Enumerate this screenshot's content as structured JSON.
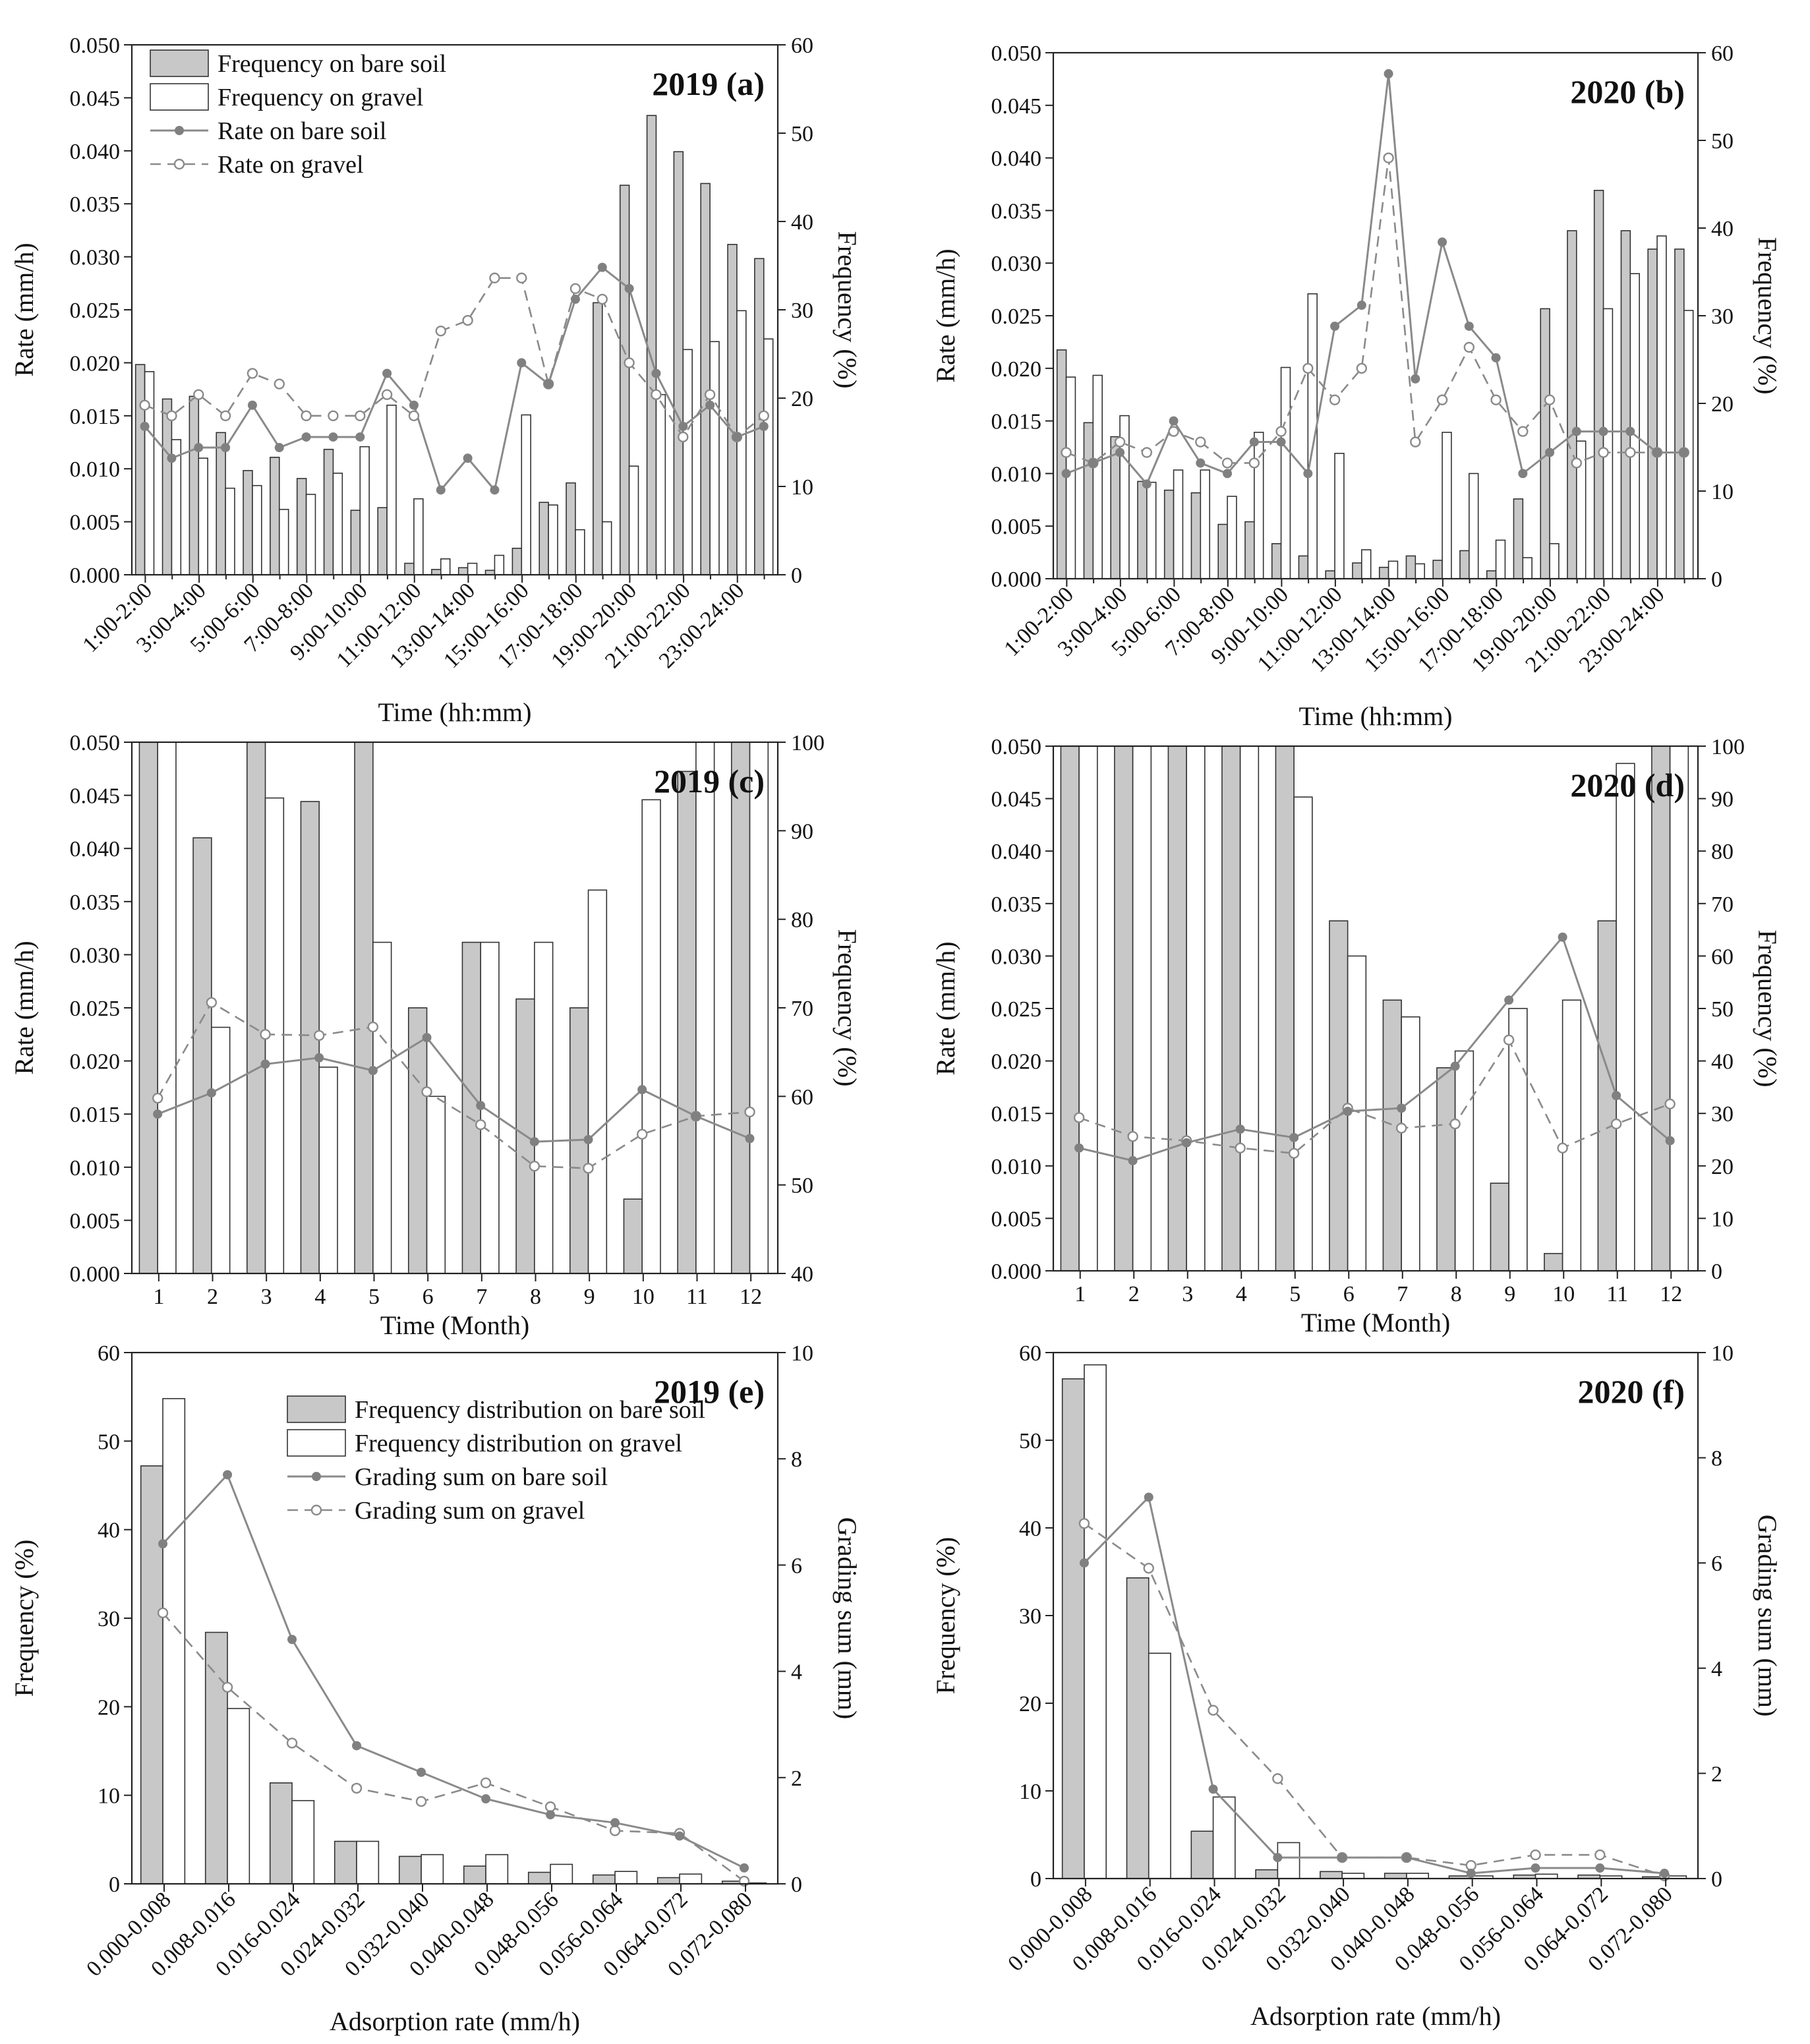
{
  "chart_data": [
    {
      "type": "bar",
      "id": "a",
      "title": "2019 (a)",
      "xlabel": "Time (hh:mm)",
      "ylabel_left": "Rate (mm/h)",
      "ylabel_right": "Frequency (%)",
      "ylim_left": [
        0,
        0.05
      ],
      "ylim_right": [
        0,
        60
      ],
      "left_ticks": [
        "0.000",
        "0.005",
        "0.010",
        "0.015",
        "0.020",
        "0.025",
        "0.030",
        "0.035",
        "0.040",
        "0.045",
        "0.050"
      ],
      "right_ticks": [
        "0",
        "10",
        "20",
        "30",
        "40",
        "50",
        "60"
      ],
      "x_tick_labels": [
        "1:00-2:00",
        "3:00-4:00",
        "5:00-6:00",
        "7:00-8:00",
        "9:00-10:00",
        "11:00-12:00",
        "13:00-14:00",
        "15:00-16:00",
        "17:00-18:00",
        "19:00-20:00",
        "21:00-22:00",
        "23:00-24:00"
      ],
      "legend": [
        "Frequency on bare soil",
        "Frequency on gravel",
        "Rate on bare soil",
        "Rate on gravel"
      ],
      "bars": [
        {
          "name": "Frequency on bare soil",
          "values": [
            23.8,
            19.9,
            20.2,
            16.1,
            11.8,
            13.3,
            10.9,
            14.2,
            7.3,
            7.6,
            1.3,
            0.6,
            0.8,
            0.5,
            3.0,
            8.2,
            10.4,
            30.8,
            44.1,
            52.0,
            47.9,
            44.3,
            37.4,
            35.8
          ]
        },
        {
          "name": "Frequency on gravel",
          "values": [
            23.0,
            15.3,
            13.2,
            9.8,
            10.1,
            7.4,
            9.1,
            11.5,
            14.5,
            19.2,
            8.6,
            1.8,
            1.3,
            2.2,
            18.1,
            7.9,
            5.1,
            6.0,
            12.3,
            20.4,
            25.5,
            26.4,
            29.9,
            26.7
          ]
        }
      ],
      "lines": [
        {
          "name": "Rate on bare soil",
          "values": [
            0.014,
            0.011,
            0.012,
            0.012,
            0.016,
            0.012,
            0.013,
            0.013,
            0.013,
            0.019,
            0.016,
            0.008,
            0.011,
            0.008,
            0.02,
            0.018,
            0.026,
            0.029,
            0.027,
            0.019,
            0.014,
            0.016,
            0.013,
            0.014
          ]
        },
        {
          "name": "Rate on gravel",
          "values": [
            0.016,
            0.015,
            0.017,
            0.015,
            0.019,
            0.018,
            0.015,
            0.015,
            0.015,
            0.017,
            0.015,
            0.023,
            0.024,
            0.028,
            0.028,
            0.018,
            0.027,
            0.026,
            0.02,
            0.017,
            0.013,
            0.017,
            0.013,
            0.015
          ]
        }
      ]
    },
    {
      "type": "bar",
      "id": "b",
      "title": "2020 (b)",
      "xlabel": "Time (hh:mm)",
      "ylabel_left": "Rate (mm/h)",
      "ylabel_right": "Frequency (%)",
      "ylim_left": [
        0,
        0.05
      ],
      "ylim_right": [
        0,
        60
      ],
      "left_ticks": [
        "0.000",
        "0.005",
        "0.010",
        "0.015",
        "0.020",
        "0.025",
        "0.030",
        "0.035",
        "0.040",
        "0.045",
        "0.050"
      ],
      "right_ticks": [
        "0",
        "10",
        "20",
        "30",
        "40",
        "50",
        "60"
      ],
      "x_tick_labels": [
        "1:00-2:00",
        "3:00-4:00",
        "5:00-6:00",
        "7:00-8:00",
        "9:00-10:00",
        "11:00-12:00",
        "13:00-14:00",
        "15:00-16:00",
        "17:00-18:00",
        "19:00-20:00",
        "21:00-22:00",
        "23:00-24:00"
      ],
      "bars": [
        {
          "name": "Frequency on bare soil",
          "values": [
            26.1,
            17.8,
            16.2,
            11.1,
            10.1,
            9.8,
            6.2,
            6.5,
            4.0,
            2.6,
            0.9,
            1.8,
            1.3,
            2.6,
            2.1,
            3.2,
            0.9,
            9.1,
            30.8,
            39.7,
            44.3,
            39.7,
            37.6,
            37.6
          ]
        },
        {
          "name": "Frequency on gravel",
          "values": [
            23.0,
            23.2,
            18.6,
            11.0,
            12.4,
            12.4,
            9.4,
            16.7,
            24.1,
            32.5,
            14.3,
            3.3,
            2.0,
            1.7,
            16.7,
            12.0,
            4.4,
            2.4,
            4.0,
            15.7,
            30.8,
            34.8,
            39.1,
            30.6
          ]
        }
      ],
      "lines": [
        {
          "name": "Rate on bare soil",
          "values": [
            0.01,
            0.011,
            0.012,
            0.009,
            0.015,
            0.011,
            0.01,
            0.013,
            0.013,
            0.01,
            0.024,
            0.026,
            0.048,
            0.019,
            0.032,
            0.024,
            0.021,
            0.01,
            0.012,
            0.014,
            0.014,
            0.014,
            0.012,
            0.012
          ]
        },
        {
          "name": "Rate on gravel",
          "values": [
            0.012,
            0.011,
            0.013,
            0.012,
            0.014,
            0.013,
            0.011,
            0.011,
            0.014,
            0.02,
            0.017,
            0.02,
            0.04,
            0.013,
            0.017,
            0.022,
            0.017,
            0.014,
            0.017,
            0.011,
            0.012,
            0.012,
            0.012,
            0.012
          ]
        }
      ]
    },
    {
      "type": "bar",
      "id": "c",
      "title": "2019 (c)",
      "xlabel": "Time (Month)",
      "ylabel_left": "Rate (mm/h)",
      "ylabel_right": "Frequency (%)",
      "ylim_left": [
        0,
        0.05
      ],
      "ylim_right": [
        40,
        100
      ],
      "left_ticks": [
        "0.000",
        "0.005",
        "0.010",
        "0.015",
        "0.020",
        "0.025",
        "0.030",
        "0.035",
        "0.040",
        "0.045",
        "0.050"
      ],
      "right_ticks": [
        "40",
        "50",
        "60",
        "70",
        "80",
        "90",
        "100"
      ],
      "x_tick_labels": [
        "1",
        "2",
        "3",
        "4",
        "5",
        "6",
        "7",
        "8",
        "9",
        "10",
        "11",
        "12"
      ],
      "bars": [
        {
          "name": "Frequency on bare soil",
          "values": [
            100,
            89.2,
            100,
            93.3,
            100,
            70,
            77.4,
            71,
            70,
            48.4,
            96.7,
            100
          ]
        },
        {
          "name": "Frequency on gravel",
          "values": [
            100,
            67.8,
            93.7,
            63.3,
            77.4,
            60,
            77.4,
            77.4,
            83.3,
            93.5,
            100,
            100
          ]
        }
      ],
      "lines": [
        {
          "name": "Rate on bare soil",
          "values": [
            0.015,
            0.017,
            0.0197,
            0.0203,
            0.0191,
            0.0222,
            0.0158,
            0.0124,
            0.0126,
            0.0173,
            0.0148,
            0.0127
          ]
        },
        {
          "name": "Rate on gravel",
          "values": [
            0.0165,
            0.0255,
            0.0225,
            0.0224,
            0.0232,
            0.0171,
            0.014,
            0.0101,
            0.0099,
            0.0131,
            0.0148,
            0.0152
          ]
        }
      ]
    },
    {
      "type": "bar",
      "id": "d",
      "title": "2020 (d)",
      "xlabel": "Time (Month)",
      "ylabel_left": "Rate (mm/h)",
      "ylabel_right": "Frequency (%)",
      "ylim_left": [
        0,
        0.05
      ],
      "ylim_right": [
        0,
        100
      ],
      "left_ticks": [
        "0.000",
        "0.005",
        "0.010",
        "0.015",
        "0.020",
        "0.025",
        "0.030",
        "0.035",
        "0.040",
        "0.045",
        "0.050"
      ],
      "right_ticks": [
        "0",
        "10",
        "20",
        "30",
        "40",
        "50",
        "60",
        "70",
        "80",
        "90",
        "100"
      ],
      "x_tick_labels": [
        "1",
        "2",
        "3",
        "4",
        "5",
        "6",
        "7",
        "8",
        "9",
        "10",
        "11",
        "12"
      ],
      "bars": [
        {
          "name": "Frequency on bare soil",
          "values": [
            100,
            100,
            100,
            100,
            100,
            66.7,
            51.6,
            38.7,
            16.7,
            3.3,
            66.7,
            100
          ]
        },
        {
          "name": "Frequency on gravel",
          "values": [
            100,
            100,
            100,
            100,
            90.3,
            60,
            48.4,
            41.9,
            50,
            51.6,
            96.7,
            100
          ]
        }
      ],
      "lines": [
        {
          "name": "Rate on bare soil",
          "values": [
            0.0117,
            0.0105,
            0.0122,
            0.0135,
            0.0127,
            0.0152,
            0.0155,
            0.0195,
            0.0258,
            0.0318,
            0.0167,
            0.0124
          ]
        },
        {
          "name": "Rate on gravel",
          "values": [
            0.0146,
            0.0128,
            0.0124,
            0.0117,
            0.0112,
            0.0155,
            0.0136,
            0.014,
            0.022,
            0.0117,
            0.014,
            0.0159
          ]
        }
      ]
    },
    {
      "type": "bar",
      "id": "e",
      "title": "2019 (e)",
      "xlabel": "Adsorption rate (mm/h)",
      "ylabel_left": "Frequency (%)",
      "ylabel_right": "Grading sum (mm)",
      "ylim_left": [
        0,
        60
      ],
      "ylim_right": [
        0,
        10
      ],
      "left_ticks": [
        "0",
        "10",
        "20",
        "30",
        "40",
        "50",
        "60"
      ],
      "right_ticks": [
        "0",
        "2",
        "4",
        "6",
        "8",
        "10"
      ],
      "x_tick_labels": [
        "0.000-0.008",
        "0.008-0.016",
        "0.016-0.024",
        "0.024-0.032",
        "0.032-0.040",
        "0.040-0.048",
        "0.048-0.056",
        "0.056-0.064",
        "0.064-0.072",
        "0.072-0.080"
      ],
      "legend": [
        "Frequency distribution on bare soil",
        "Frequency distribution on gravel",
        "Grading sum on bare soil",
        "Grading sum on gravel"
      ],
      "bars": [
        {
          "name": "Frequency distribution on bare soil",
          "values": [
            47.2,
            28.4,
            11.4,
            4.8,
            3.1,
            2.0,
            1.3,
            1.0,
            0.7,
            0.3
          ]
        },
        {
          "name": "Frequency distribution on gravel",
          "values": [
            54.8,
            19.8,
            9.4,
            4.8,
            3.3,
            3.3,
            2.2,
            1.4,
            1.1,
            0.1
          ]
        }
      ],
      "lines": [
        {
          "name": "Grading sum on bare soil",
          "values": [
            6.4,
            7.7,
            4.6,
            2.6,
            2.1,
            1.6,
            1.3,
            1.15,
            0.9,
            0.3
          ]
        },
        {
          "name": "Grading sum on gravel",
          "values": [
            5.1,
            3.7,
            2.65,
            1.8,
            1.55,
            1.9,
            1.45,
            1.0,
            0.95,
            0.05
          ]
        }
      ]
    },
    {
      "type": "bar",
      "id": "f",
      "title": "2020 (f)",
      "xlabel": "Adsorption rate (mm/h)",
      "ylabel_left": "Frequency (%)",
      "ylabel_right": "Grading sum (mm)",
      "ylim_left": [
        0,
        60
      ],
      "ylim_right": [
        0,
        10
      ],
      "left_ticks": [
        "0",
        "10",
        "20",
        "30",
        "40",
        "50",
        "60"
      ],
      "right_ticks": [
        "0",
        "2",
        "4",
        "6",
        "8",
        "10"
      ],
      "x_tick_labels": [
        "0.000-0.008",
        "0.008-0.016",
        "0.016-0.024",
        "0.024-0.032",
        "0.032-0.040",
        "0.040-0.048",
        "0.048-0.056",
        "0.056-0.064",
        "0.064-0.072",
        "0.072-0.080"
      ],
      "bars": [
        {
          "name": "Frequency distribution on bare soil",
          "values": [
            57.0,
            34.3,
            5.4,
            1.0,
            0.8,
            0.6,
            0.3,
            0.4,
            0.4,
            0.2
          ]
        },
        {
          "name": "Frequency distribution on gravel",
          "values": [
            58.6,
            25.7,
            9.3,
            4.1,
            0.6,
            0.6,
            0.3,
            0.5,
            0.3,
            0.3
          ]
        }
      ],
      "lines": [
        {
          "name": "Grading sum on bare soil",
          "values": [
            6.0,
            7.25,
            1.7,
            0.4,
            0.4,
            0.4,
            0.1,
            0.2,
            0.2,
            0.1
          ]
        },
        {
          "name": "Grading sum on gravel",
          "values": [
            6.75,
            5.9,
            3.2,
            1.9,
            0.4,
            0.4,
            0.25,
            0.45,
            0.45,
            0.05
          ]
        }
      ]
    }
  ]
}
